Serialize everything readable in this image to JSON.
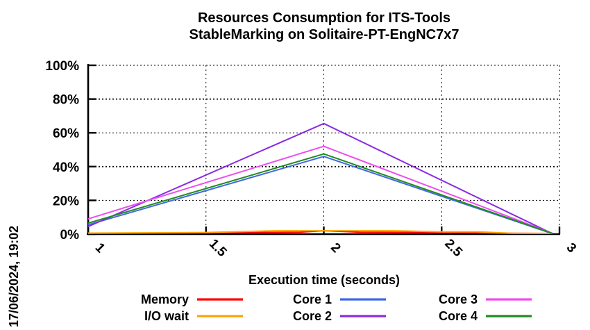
{
  "chart_data": {
    "type": "line",
    "title_lines": [
      "Resources Consumption for ITS-Tools",
      "StableMarking on Solitaire-PT-EngNC7x7"
    ],
    "xlabel": "Execution time (seconds)",
    "timestamp": "17/06/2024, 19:02",
    "xlim": [
      1,
      3
    ],
    "ylim": [
      0,
      100
    ],
    "grid": true,
    "legend_position": "bottom",
    "x_ticks": [
      1,
      1.5,
      2,
      2.5,
      3
    ],
    "x_tick_labels": [
      "1",
      "1.5",
      "2",
      "2.5",
      "3"
    ],
    "y_ticks": [
      0,
      20,
      40,
      60,
      80,
      100
    ],
    "y_tick_labels": [
      "0%",
      "20%",
      "40%",
      "60%",
      "80%",
      "100%"
    ],
    "series": [
      {
        "name": "Memory",
        "color": "#ff0000",
        "points": [
          [
            1,
            0.4
          ],
          [
            1.5,
            0.8
          ],
          [
            1.9,
            1.2
          ],
          [
            2.0,
            2.0
          ],
          [
            2.15,
            1.2
          ],
          [
            2.5,
            1.0
          ],
          [
            2.75,
            0.5
          ],
          [
            2.97,
            0.4
          ]
        ]
      },
      {
        "name": "I/O wait",
        "color": "#ffa500",
        "points": [
          [
            1,
            0.6
          ],
          [
            1.5,
            1.0
          ],
          [
            1.8,
            2.0
          ],
          [
            2.3,
            2.0
          ],
          [
            2.5,
            1.4
          ],
          [
            2.65,
            1.4
          ],
          [
            2.8,
            0.5
          ],
          [
            2.97,
            0.4
          ]
        ]
      },
      {
        "name": "Core 1",
        "color": "#4169e1",
        "points": [
          [
            1,
            5.5
          ],
          [
            2,
            46.0
          ],
          [
            2.97,
            0.3
          ]
        ]
      },
      {
        "name": "Core 2",
        "color": "#8a2be2",
        "points": [
          [
            1,
            4.5
          ],
          [
            2,
            65.5
          ],
          [
            2.97,
            0.3
          ]
        ]
      },
      {
        "name": "Core 3",
        "color": "#ee4eee",
        "points": [
          [
            1,
            9.0
          ],
          [
            2,
            52.0
          ],
          [
            2.97,
            0.5
          ]
        ]
      },
      {
        "name": "Core 4",
        "color": "#228b22",
        "points": [
          [
            1,
            6.5
          ],
          [
            2,
            47.5
          ],
          [
            2.97,
            0.4
          ]
        ]
      }
    ],
    "legend_items": [
      {
        "label": "Memory",
        "color": "#ff0000"
      },
      {
        "label": "I/O wait",
        "color": "#ffa500"
      },
      {
        "label": "Core 1",
        "color": "#4169e1"
      },
      {
        "label": "Core 2",
        "color": "#8a2be2"
      },
      {
        "label": "Core 3",
        "color": "#ee4eee"
      },
      {
        "label": "Core 4",
        "color": "#228b22"
      }
    ],
    "colors": {
      "axis": "#000000",
      "grid": "#000000",
      "background": "#ffffff"
    }
  }
}
